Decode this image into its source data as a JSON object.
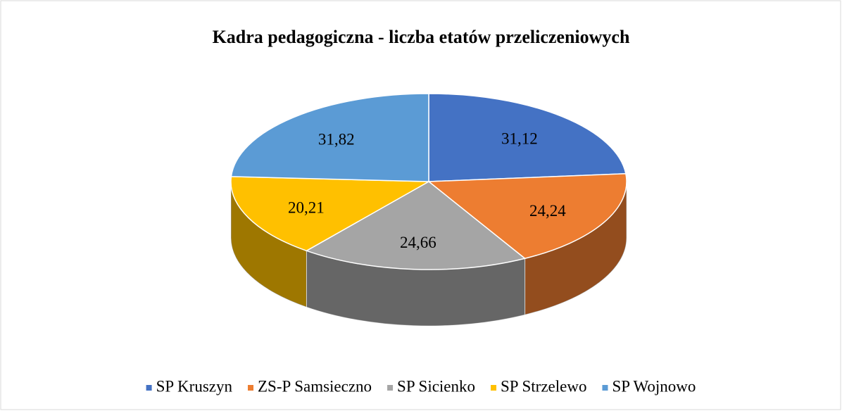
{
  "chart_data": {
    "type": "pie",
    "title": "Kadra pedagogiczna - liczba etatów przeliczeniowych",
    "categories": [
      "SP Kruszyn",
      "ZS-P Samsieczno",
      "SP Sicienko",
      "SP Strzelewo",
      "SP Wojnowo"
    ],
    "values": [
      31.12,
      24.24,
      24.66,
      20.21,
      31.82
    ],
    "value_labels": [
      "31,12",
      "24,24",
      "24,66",
      "20,21",
      "31,82"
    ],
    "colors": [
      "#4472c4",
      "#ed7d31",
      "#a5a5a5",
      "#ffc000",
      "#5b9bd5"
    ],
    "legend": "bottom"
  }
}
